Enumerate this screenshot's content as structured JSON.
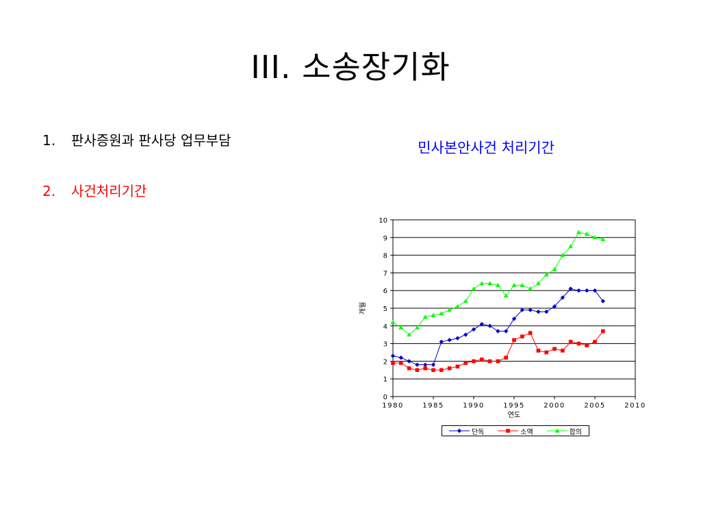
{
  "slide": {
    "title": "III. 소송장기화",
    "bullets": [
      {
        "number": "1.",
        "text": "판사증원과 판사당 업무부담",
        "color": "#000000"
      },
      {
        "number": "2.",
        "text": "사건처리기간",
        "color": "#ff0000"
      }
    ]
  },
  "chart_heading": {
    "text": "민사본안사건 처리기간",
    "color": "#0000ff"
  },
  "chart_data": {
    "type": "line",
    "title": "",
    "xlabel": "연도",
    "ylabel": "개월",
    "xlim": [
      1980,
      2010
    ],
    "ylim": [
      0,
      10
    ],
    "xticks": [
      "1980",
      "1985",
      "1990",
      "1995",
      "2000",
      "2005",
      "2010"
    ],
    "yticks": [
      "0",
      "1",
      "2",
      "3",
      "4",
      "5",
      "6",
      "7",
      "8",
      "9",
      "10"
    ],
    "grid": "horizontal",
    "legend_position": "bottom",
    "x": [
      1980,
      1981,
      1982,
      1983,
      1984,
      1985,
      1986,
      1987,
      1988,
      1989,
      1990,
      1991,
      1992,
      1993,
      1994,
      1995,
      1996,
      1997,
      1998,
      1999,
      2000,
      2001,
      2002,
      2003,
      2004,
      2005,
      2006
    ],
    "series": [
      {
        "name": "단독",
        "color": "#0000cc",
        "marker": "diamond",
        "values": [
          2.3,
          2.2,
          2.0,
          1.8,
          1.8,
          1.8,
          3.1,
          3.2,
          3.3,
          3.5,
          3.8,
          4.1,
          4.0,
          3.7,
          3.7,
          4.4,
          4.9,
          4.9,
          4.8,
          4.8,
          5.1,
          5.6,
          6.1,
          6.0,
          6.0,
          6.0,
          5.4
        ]
      },
      {
        "name": "소액",
        "color": "#ff0000",
        "marker": "square",
        "values": [
          1.9,
          1.9,
          1.6,
          1.5,
          1.6,
          1.5,
          1.5,
          1.6,
          1.7,
          1.9,
          2.0,
          2.1,
          2.0,
          2.0,
          2.2,
          3.2,
          3.4,
          3.6,
          2.6,
          2.5,
          2.7,
          2.6,
          3.1,
          3.0,
          2.9,
          3.1,
          3.7
        ]
      },
      {
        "name": "합의",
        "color": "#00ff00",
        "marker": "triangle",
        "values": [
          4.2,
          3.9,
          3.5,
          3.9,
          4.5,
          4.6,
          4.7,
          4.9,
          5.1,
          5.4,
          6.1,
          6.4,
          6.4,
          6.3,
          5.7,
          6.3,
          6.3,
          6.1,
          6.4,
          6.9,
          7.2,
          8.0,
          8.5,
          9.3,
          9.2,
          9.0,
          8.9
        ]
      }
    ]
  }
}
